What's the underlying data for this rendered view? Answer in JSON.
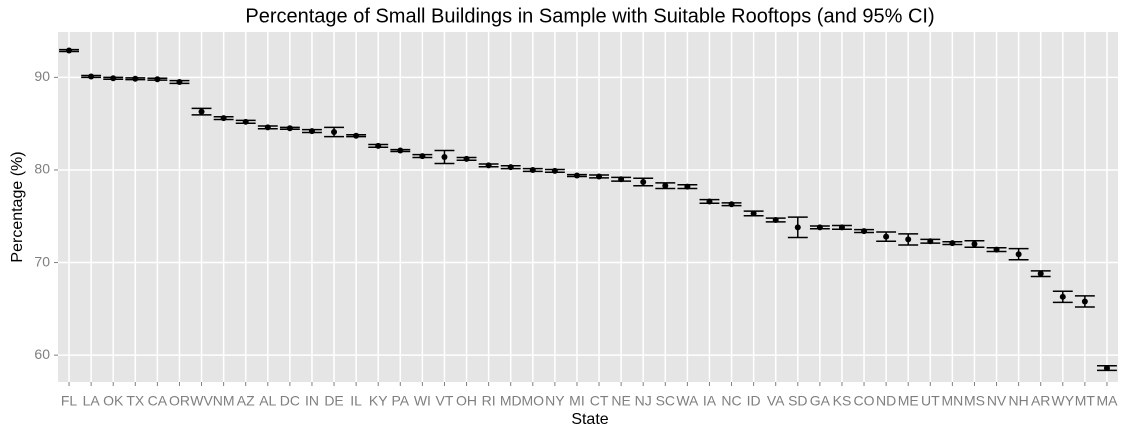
{
  "chart_data": {
    "type": "errorbar",
    "title": "Percentage of Small Buildings in Sample with Suitable Rooftops (and 95% CI)",
    "x_label": "State",
    "y_label": "Percentage (%)",
    "categories": [
      "FL",
      "LA",
      "OK",
      "TX",
      "CA",
      "OR",
      "WV",
      "NM",
      "AZ",
      "AL",
      "DC",
      "IN",
      "DE",
      "IL",
      "KY",
      "PA",
      "WI",
      "VT",
      "OH",
      "RI",
      "MD",
      "MO",
      "NY",
      "MI",
      "CT",
      "NE",
      "NJ",
      "SC",
      "WA",
      "IA",
      "NC",
      "ID",
      "VA",
      "SD",
      "GA",
      "KS",
      "CO",
      "ND",
      "ME",
      "UT",
      "MN",
      "MS",
      "NV",
      "NH",
      "AR",
      "WY",
      "MT",
      "MA"
    ],
    "values": [
      92.9,
      90.1,
      89.9,
      89.85,
      89.8,
      89.5,
      86.3,
      85.6,
      85.2,
      84.6,
      84.5,
      84.2,
      84.1,
      83.7,
      82.6,
      82.1,
      81.5,
      81.4,
      81.2,
      80.5,
      80.3,
      80.0,
      79.9,
      79.4,
      79.3,
      79.0,
      78.7,
      78.3,
      78.2,
      76.6,
      76.3,
      75.3,
      74.6,
      73.8,
      73.8,
      73.8,
      73.4,
      72.8,
      72.5,
      72.3,
      72.1,
      72.0,
      71.4,
      70.9,
      68.8,
      66.3,
      65.8,
      58.6
    ],
    "errors": [
      0.1,
      0.1,
      0.1,
      0.1,
      0.1,
      0.15,
      0.35,
      0.15,
      0.15,
      0.15,
      0.1,
      0.15,
      0.5,
      0.1,
      0.15,
      0.1,
      0.15,
      0.7,
      0.15,
      0.15,
      0.15,
      0.15,
      0.15,
      0.1,
      0.15,
      0.2,
      0.4,
      0.3,
      0.2,
      0.2,
      0.15,
      0.25,
      0.2,
      1.1,
      0.15,
      0.2,
      0.15,
      0.5,
      0.6,
      0.2,
      0.15,
      0.35,
      0.2,
      0.6,
      0.3,
      0.6,
      0.6,
      0.25
    ],
    "color": "#000000",
    "ylim": [
      57.1,
      94.9
    ],
    "yticks": [
      60,
      70,
      80,
      90
    ],
    "grid": true
  }
}
